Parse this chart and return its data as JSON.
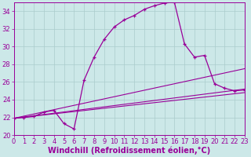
{
  "xlabel": "Windchill (Refroidissement éolien,°C)",
  "background_color": "#cce8e8",
  "line_color": "#990099",
  "grid_color": "#aacccc",
  "xlim": [
    0,
    23
  ],
  "ylim": [
    20,
    35
  ],
  "xticks": [
    0,
    1,
    2,
    3,
    4,
    5,
    6,
    7,
    8,
    9,
    10,
    11,
    12,
    13,
    14,
    15,
    16,
    17,
    18,
    19,
    20,
    21,
    22,
    23
  ],
  "yticks": [
    20,
    22,
    24,
    26,
    28,
    30,
    32,
    34
  ],
  "line1_x": [
    0,
    1,
    2,
    3,
    4,
    5,
    6,
    7,
    8,
    9,
    10,
    11,
    12,
    13,
    14,
    15,
    16,
    17,
    18,
    19,
    20,
    21,
    22,
    23
  ],
  "line1_y": [
    21.9,
    22.0,
    22.1,
    22.6,
    22.8,
    21.3,
    20.7,
    26.2,
    28.8,
    30.8,
    32.2,
    33.0,
    33.5,
    34.2,
    34.6,
    34.9,
    35.0,
    30.3,
    28.8,
    29.0,
    25.8,
    25.3,
    25.0,
    25.1
  ],
  "line2_x": [
    0,
    23
  ],
  "line2_y": [
    21.9,
    27.5
  ],
  "line3_x": [
    0,
    23
  ],
  "line3_y": [
    21.9,
    25.2
  ],
  "line4_x": [
    0,
    23
  ],
  "line4_y": [
    21.9,
    24.8
  ],
  "fontsize_label": 7,
  "fontsize_tick": 6
}
